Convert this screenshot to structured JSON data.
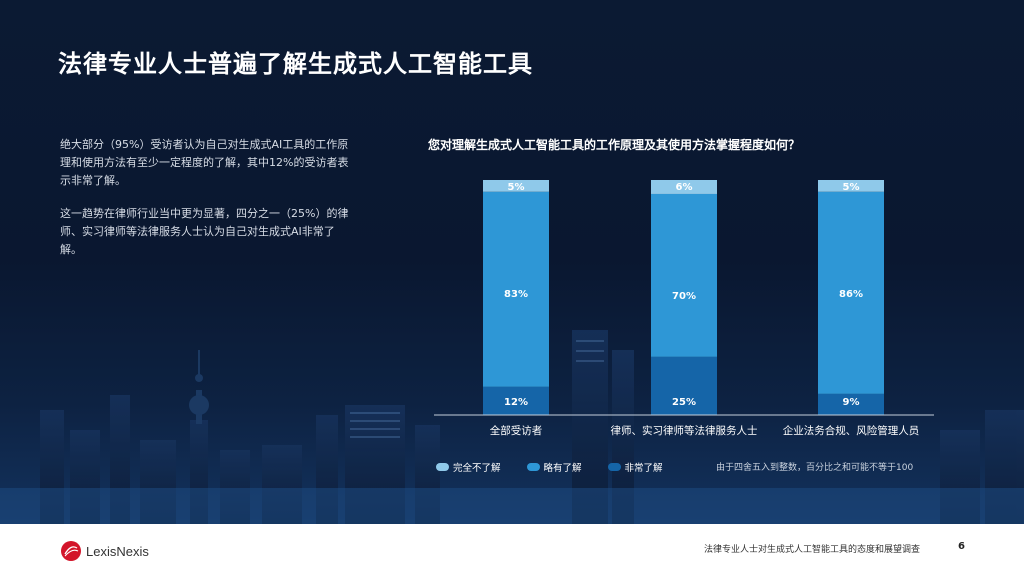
{
  "title": "法律专业人士普遍了解生成式人工智能工具",
  "paragraphs": [
    "绝大部分（95%）受访者认为自己对生成式AI工具的工作原理和使用方法有至少一定程度的了解，其中12%的受访者表示非常了解。",
    "这一趋势在律师行业当中更为显著，四分之一（25%）的律师、实习律师等法律服务人士认为自己对生成式AI非常了解。"
  ],
  "chart_data": {
    "type": "bar",
    "stacked": true,
    "title": "您对理解生成式人工智能工具的工作原理及其使用方法掌握程度如何？",
    "categories": [
      "全部受访者",
      "律师、实习律师等法律服务人士",
      "企业法务合规、风险管理人员"
    ],
    "series": [
      {
        "name": "非常了解",
        "values": [
          12,
          25,
          9
        ],
        "color": "#1565a8"
      },
      {
        "name": "略有了解",
        "values": [
          83,
          70,
          86
        ],
        "color": "#2e97d6"
      },
      {
        "name": "完全不了解",
        "values": [
          5,
          6,
          5
        ],
        "color": "#8fc9ea"
      }
    ],
    "ylim": [
      0,
      100
    ],
    "legend_order": [
      "完全不了解",
      "略有了解",
      "非常了解"
    ],
    "legend_position": "bottom-left"
  },
  "footnote": "由于四舍五入到整数，百分比之和可能不等于100",
  "footer": {
    "logo_text": "LexisNexis",
    "caption": "法律专业人士对生成式人工智能工具的态度和展望调查",
    "page_number": "6"
  },
  "colors": {
    "logo_red": "#d3152a"
  }
}
